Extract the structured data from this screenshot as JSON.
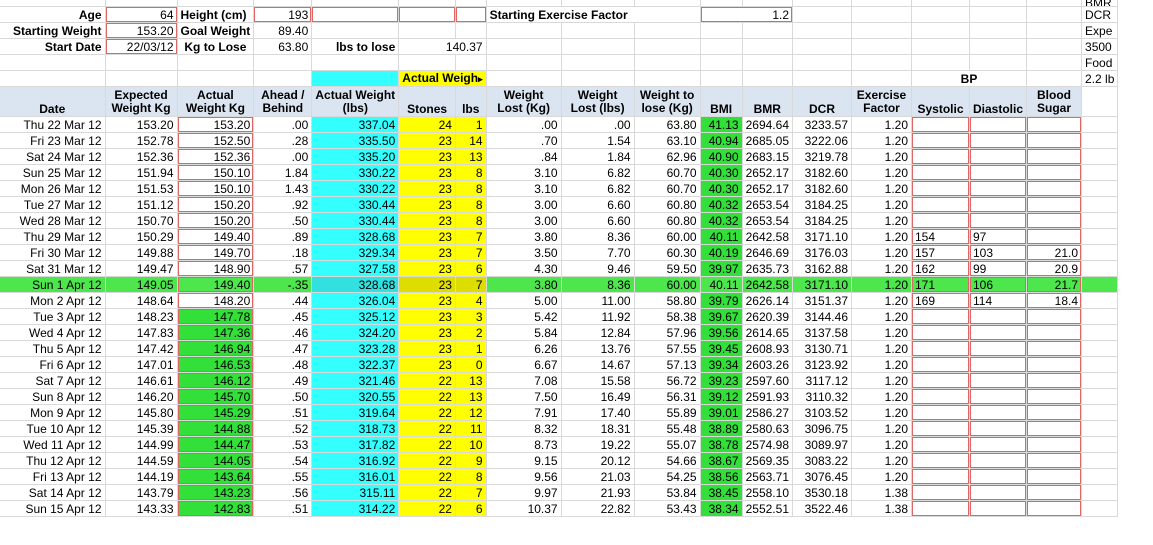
{
  "top_params": {
    "age_label": "Age",
    "age": "64",
    "height_label": "Height (cm)",
    "height": "193",
    "start_factor_label": "Starting Exercise Factor",
    "start_factor": "1.2",
    "start_weight_label": "Starting Weight",
    "start_weight": "153.20",
    "goal_weight_label": "Goal Weight",
    "goal_weight": "89.40",
    "start_date_label": "Start Date",
    "start_date": "22/03/12",
    "kg_to_lose_label": "Kg to Lose",
    "kg_to_lose": "63.80",
    "lbs_to_lose_label": "lbs to lose",
    "lbs_to_lose": "140.37"
  },
  "side_notes": {
    "r0": "BMR",
    "r1": "DCR",
    "r3": "Expe",
    "r4": "3500",
    "r5": "Food",
    "r6": "2.2 lb"
  },
  "filter_label": "Actual Weigh",
  "bp_label": "BP",
  "headers": {
    "date": "Date",
    "expected": "Expected Weight Kg",
    "actual": "Actual Weight Kg",
    "ahead": "Ahead / Behind",
    "actual_lbs": "Actual Weight (lbs)",
    "stones": "Stones",
    "lbs": "lbs",
    "lost_kg": "Weight Lost (Kg)",
    "lost_lbs": "Weight Lost (lbs)",
    "to_lose": "Weight to lose (Kg)",
    "bmi": "BMI",
    "bmr": "BMR",
    "dcr": "DCR",
    "factor": "Exercise Factor",
    "systolic": "Systolic",
    "diastolic": "Diastolic",
    "sugar": "Blood Sugar"
  },
  "rows": [
    {
      "date": "Thu 22 Mar 12",
      "expected": "153.20",
      "actual": "153.20",
      "ahead": ".00",
      "lbs_w": "337.04",
      "stones": "24",
      "lbs": "1",
      "lost_kg": ".00",
      "lost_lbs": ".00",
      "to_lose": "63.80",
      "bmi": "41.13",
      "bmr": "2694.64",
      "dcr": "3233.57",
      "factor": "1.20",
      "sys": "",
      "dia": "",
      "sugar": ""
    },
    {
      "date": "Fri 23 Mar 12",
      "expected": "152.78",
      "actual": "152.50",
      "ahead": ".28",
      "lbs_w": "335.50",
      "stones": "23",
      "lbs": "14",
      "lost_kg": ".70",
      "lost_lbs": "1.54",
      "to_lose": "63.10",
      "bmi": "40.94",
      "bmr": "2685.05",
      "dcr": "3222.06",
      "factor": "1.20",
      "sys": "",
      "dia": "",
      "sugar": ""
    },
    {
      "date": "Sat 24 Mar 12",
      "expected": "152.36",
      "actual": "152.36",
      "ahead": ".00",
      "lbs_w": "335.20",
      "stones": "23",
      "lbs": "13",
      "lost_kg": ".84",
      "lost_lbs": "1.84",
      "to_lose": "62.96",
      "bmi": "40.90",
      "bmr": "2683.15",
      "dcr": "3219.78",
      "factor": "1.20",
      "sys": "",
      "dia": "",
      "sugar": ""
    },
    {
      "date": "Sun 25 Mar 12",
      "expected": "151.94",
      "actual": "150.10",
      "ahead": "1.84",
      "lbs_w": "330.22",
      "stones": "23",
      "lbs": "8",
      "lost_kg": "3.10",
      "lost_lbs": "6.82",
      "to_lose": "60.70",
      "bmi": "40.30",
      "bmr": "2652.17",
      "dcr": "3182.60",
      "factor": "1.20",
      "sys": "",
      "dia": "",
      "sugar": ""
    },
    {
      "date": "Mon 26 Mar 12",
      "expected": "151.53",
      "actual": "150.10",
      "ahead": "1.43",
      "lbs_w": "330.22",
      "stones": "23",
      "lbs": "8",
      "lost_kg": "3.10",
      "lost_lbs": "6.82",
      "to_lose": "60.70",
      "bmi": "40.30",
      "bmr": "2652.17",
      "dcr": "3182.60",
      "factor": "1.20",
      "sys": "",
      "dia": "",
      "sugar": ""
    },
    {
      "date": "Tue 27 Mar 12",
      "expected": "151.12",
      "actual": "150.20",
      "ahead": ".92",
      "lbs_w": "330.44",
      "stones": "23",
      "lbs": "8",
      "lost_kg": "3.00",
      "lost_lbs": "6.60",
      "to_lose": "60.80",
      "bmi": "40.32",
      "bmr": "2653.54",
      "dcr": "3184.25",
      "factor": "1.20",
      "sys": "",
      "dia": "",
      "sugar": ""
    },
    {
      "date": "Wed 28 Mar 12",
      "expected": "150.70",
      "actual": "150.20",
      "ahead": ".50",
      "lbs_w": "330.44",
      "stones": "23",
      "lbs": "8",
      "lost_kg": "3.00",
      "lost_lbs": "6.60",
      "to_lose": "60.80",
      "bmi": "40.32",
      "bmr": "2653.54",
      "dcr": "3184.25",
      "factor": "1.20",
      "sys": "",
      "dia": "",
      "sugar": ""
    },
    {
      "date": "Thu 29 Mar 12",
      "expected": "150.29",
      "actual": "149.40",
      "ahead": ".89",
      "lbs_w": "328.68",
      "stones": "23",
      "lbs": "7",
      "lost_kg": "3.80",
      "lost_lbs": "8.36",
      "to_lose": "60.00",
      "bmi": "40.11",
      "bmr": "2642.58",
      "dcr": "3171.10",
      "factor": "1.20",
      "sys": "154",
      "dia": "97",
      "sugar": ""
    },
    {
      "date": "Fri 30 Mar 12",
      "expected": "149.88",
      "actual": "149.70",
      "ahead": ".18",
      "lbs_w": "329.34",
      "stones": "23",
      "lbs": "7",
      "lost_kg": "3.50",
      "lost_lbs": "7.70",
      "to_lose": "60.30",
      "bmi": "40.19",
      "bmr": "2646.69",
      "dcr": "3176.03",
      "factor": "1.20",
      "sys": "157",
      "dia": "103",
      "sugar": "21.0"
    },
    {
      "date": "Sat 31 Mar 12",
      "expected": "149.47",
      "actual": "148.90",
      "ahead": ".57",
      "lbs_w": "327.58",
      "stones": "23",
      "lbs": "6",
      "lost_kg": "4.30",
      "lost_lbs": "9.46",
      "to_lose": "59.50",
      "bmi": "39.97",
      "bmr": "2635.73",
      "dcr": "3162.88",
      "factor": "1.20",
      "sys": "162",
      "dia": "99",
      "sugar": "20.9"
    },
    {
      "date": "Sun 1 Apr 12",
      "expected": "149.05",
      "actual": "149.40",
      "ahead": "-.35",
      "lbs_w": "328.68",
      "stones": "23",
      "lbs": "7",
      "lost_kg": "3.80",
      "lost_lbs": "8.36",
      "to_lose": "60.00",
      "bmi": "40.11",
      "bmr": "2642.58",
      "dcr": "3171.10",
      "factor": "1.20",
      "sys": "171",
      "dia": "106",
      "sugar": "21.7"
    },
    {
      "date": "Mon 2 Apr 12",
      "expected": "148.64",
      "actual": "148.20",
      "ahead": ".44",
      "lbs_w": "326.04",
      "stones": "23",
      "lbs": "4",
      "lost_kg": "5.00",
      "lost_lbs": "11.00",
      "to_lose": "58.80",
      "bmi": "39.79",
      "bmr": "2626.14",
      "dcr": "3151.37",
      "factor": "1.20",
      "sys": "169",
      "dia": "114",
      "sugar": "18.4"
    },
    {
      "date": "Tue 3 Apr 12",
      "expected": "148.23",
      "actual": "147.78",
      "ahead": ".45",
      "lbs_w": "325.12",
      "stones": "23",
      "lbs": "3",
      "lost_kg": "5.42",
      "lost_lbs": "11.92",
      "to_lose": "58.38",
      "bmi": "39.67",
      "bmr": "2620.39",
      "dcr": "3144.46",
      "factor": "1.20",
      "sys": "",
      "dia": "",
      "sugar": ""
    },
    {
      "date": "Wed 4 Apr 12",
      "expected": "147.83",
      "actual": "147.36",
      "ahead": ".46",
      "lbs_w": "324.20",
      "stones": "23",
      "lbs": "2",
      "lost_kg": "5.84",
      "lost_lbs": "12.84",
      "to_lose": "57.96",
      "bmi": "39.56",
      "bmr": "2614.65",
      "dcr": "3137.58",
      "factor": "1.20",
      "sys": "",
      "dia": "",
      "sugar": ""
    },
    {
      "date": "Thu 5 Apr 12",
      "expected": "147.42",
      "actual": "146.94",
      "ahead": ".47",
      "lbs_w": "323.28",
      "stones": "23",
      "lbs": "1",
      "lost_kg": "6.26",
      "lost_lbs": "13.76",
      "to_lose": "57.55",
      "bmi": "39.45",
      "bmr": "2608.93",
      "dcr": "3130.71",
      "factor": "1.20",
      "sys": "",
      "dia": "",
      "sugar": ""
    },
    {
      "date": "Fri 6 Apr 12",
      "expected": "147.01",
      "actual": "146.53",
      "ahead": ".48",
      "lbs_w": "322.37",
      "stones": "23",
      "lbs": "0",
      "lost_kg": "6.67",
      "lost_lbs": "14.67",
      "to_lose": "57.13",
      "bmi": "39.34",
      "bmr": "2603.26",
      "dcr": "3123.92",
      "factor": "1.20",
      "sys": "",
      "dia": "",
      "sugar": ""
    },
    {
      "date": "Sat 7 Apr 12",
      "expected": "146.61",
      "actual": "146.12",
      "ahead": ".49",
      "lbs_w": "321.46",
      "stones": "22",
      "lbs": "13",
      "lost_kg": "7.08",
      "lost_lbs": "15.58",
      "to_lose": "56.72",
      "bmi": "39.23",
      "bmr": "2597.60",
      "dcr": "3117.12",
      "factor": "1.20",
      "sys": "",
      "dia": "",
      "sugar": ""
    },
    {
      "date": "Sun 8 Apr 12",
      "expected": "146.20",
      "actual": "145.70",
      "ahead": ".50",
      "lbs_w": "320.55",
      "stones": "22",
      "lbs": "13",
      "lost_kg": "7.50",
      "lost_lbs": "16.49",
      "to_lose": "56.31",
      "bmi": "39.12",
      "bmr": "2591.93",
      "dcr": "3110.32",
      "factor": "1.20",
      "sys": "",
      "dia": "",
      "sugar": ""
    },
    {
      "date": "Mon 9 Apr 12",
      "expected": "145.80",
      "actual": "145.29",
      "ahead": ".51",
      "lbs_w": "319.64",
      "stones": "22",
      "lbs": "12",
      "lost_kg": "7.91",
      "lost_lbs": "17.40",
      "to_lose": "55.89",
      "bmi": "39.01",
      "bmr": "2586.27",
      "dcr": "3103.52",
      "factor": "1.20",
      "sys": "",
      "dia": "",
      "sugar": ""
    },
    {
      "date": "Tue 10 Apr 12",
      "expected": "145.39",
      "actual": "144.88",
      "ahead": ".52",
      "lbs_w": "318.73",
      "stones": "22",
      "lbs": "11",
      "lost_kg": "8.32",
      "lost_lbs": "18.31",
      "to_lose": "55.48",
      "bmi": "38.89",
      "bmr": "2580.63",
      "dcr": "3096.75",
      "factor": "1.20",
      "sys": "",
      "dia": "",
      "sugar": ""
    },
    {
      "date": "Wed 11 Apr 12",
      "expected": "144.99",
      "actual": "144.47",
      "ahead": ".53",
      "lbs_w": "317.82",
      "stones": "22",
      "lbs": "10",
      "lost_kg": "8.73",
      "lost_lbs": "19.22",
      "to_lose": "55.07",
      "bmi": "38.78",
      "bmr": "2574.98",
      "dcr": "3089.97",
      "factor": "1.20",
      "sys": "",
      "dia": "",
      "sugar": ""
    },
    {
      "date": "Thu 12 Apr 12",
      "expected": "144.59",
      "actual": "144.05",
      "ahead": ".54",
      "lbs_w": "316.92",
      "stones": "22",
      "lbs": "9",
      "lost_kg": "9.15",
      "lost_lbs": "20.12",
      "to_lose": "54.66",
      "bmi": "38.67",
      "bmr": "2569.35",
      "dcr": "3083.22",
      "factor": "1.20",
      "sys": "",
      "dia": "",
      "sugar": ""
    },
    {
      "date": "Fri 13 Apr 12",
      "expected": "144.19",
      "actual": "143.64",
      "ahead": ".55",
      "lbs_w": "316.01",
      "stones": "22",
      "lbs": "8",
      "lost_kg": "9.56",
      "lost_lbs": "21.03",
      "to_lose": "54.25",
      "bmi": "38.56",
      "bmr": "2563.71",
      "dcr": "3076.45",
      "factor": "1.20",
      "sys": "",
      "dia": "",
      "sugar": ""
    },
    {
      "date": "Sat 14 Apr 12",
      "expected": "143.79",
      "actual": "143.23",
      "ahead": ".56",
      "lbs_w": "315.11",
      "stones": "22",
      "lbs": "7",
      "lost_kg": "9.97",
      "lost_lbs": "21.93",
      "to_lose": "53.84",
      "bmi": "38.45",
      "bmr": "2558.10",
      "dcr": "3530.18",
      "factor": "1.38",
      "sys": "",
      "dia": "",
      "sugar": ""
    },
    {
      "date": "Sun 15 Apr 12",
      "expected": "143.33",
      "actual": "142.83",
      "ahead": ".51",
      "lbs_w": "314.22",
      "stones": "22",
      "lbs": "6",
      "lost_kg": "10.37",
      "lost_lbs": "22.82",
      "to_lose": "53.43",
      "bmi": "38.34",
      "bmr": "2552.51",
      "dcr": "3522.46",
      "factor": "1.38",
      "sys": "",
      "dia": "",
      "sugar": ""
    }
  ],
  "colors": {
    "cyan": "#33ffff",
    "yellow": "#ffff00",
    "green": "#33e03a",
    "selected_row": "#4de64d",
    "border_red": "#e06666"
  }
}
